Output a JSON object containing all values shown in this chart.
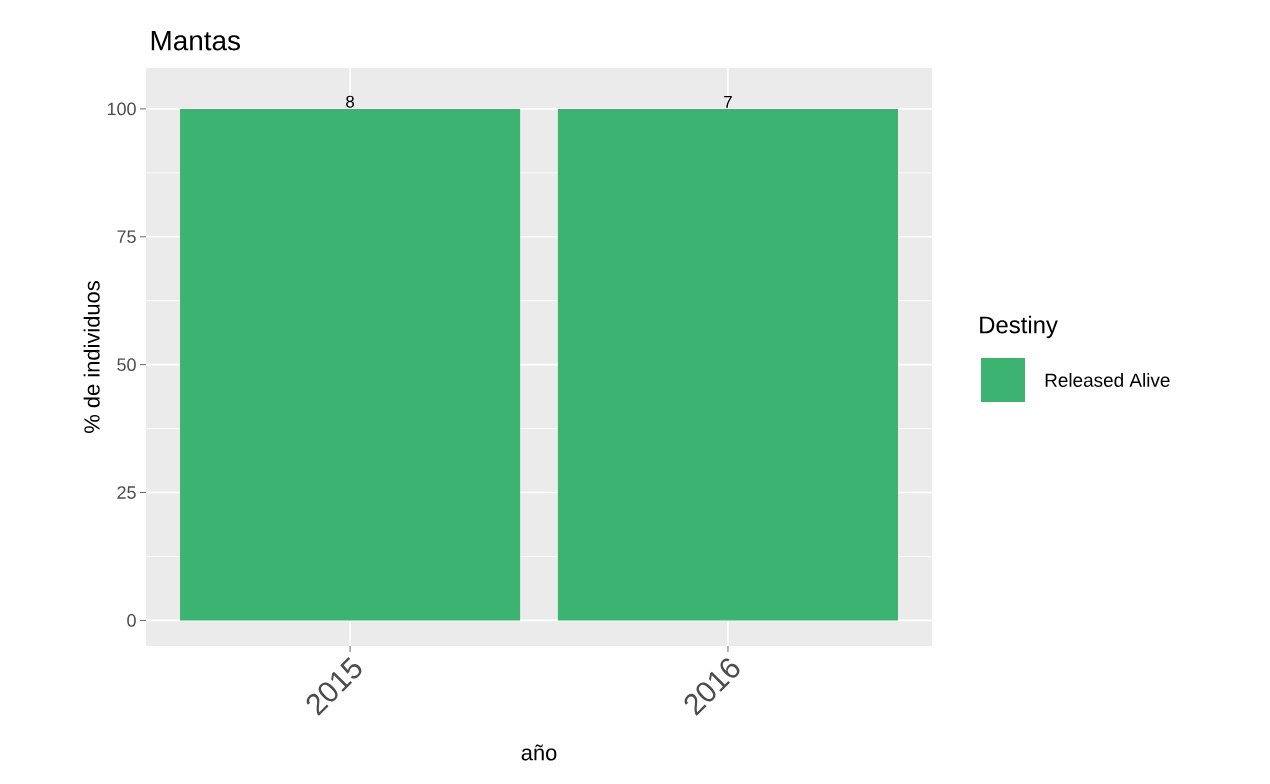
{
  "chart_data": {
    "type": "bar",
    "title": "Mantas",
    "xlabel": "año",
    "ylabel": "% de individuos",
    "legend_title": "Destiny",
    "categories": [
      "2015",
      "2016"
    ],
    "series": [
      {
        "name": "Released Alive",
        "color": "#3cb371",
        "values": [
          100,
          100
        ]
      }
    ],
    "annotations": [
      {
        "text": "8",
        "x": "2015",
        "y": 100
      },
      {
        "text": "7",
        "x": "2016",
        "y": 100
      }
    ],
    "ylim": [
      -5,
      108
    ],
    "yticks": [
      0,
      25,
      50,
      75,
      100
    ],
    "grid": true,
    "legend": "right"
  }
}
